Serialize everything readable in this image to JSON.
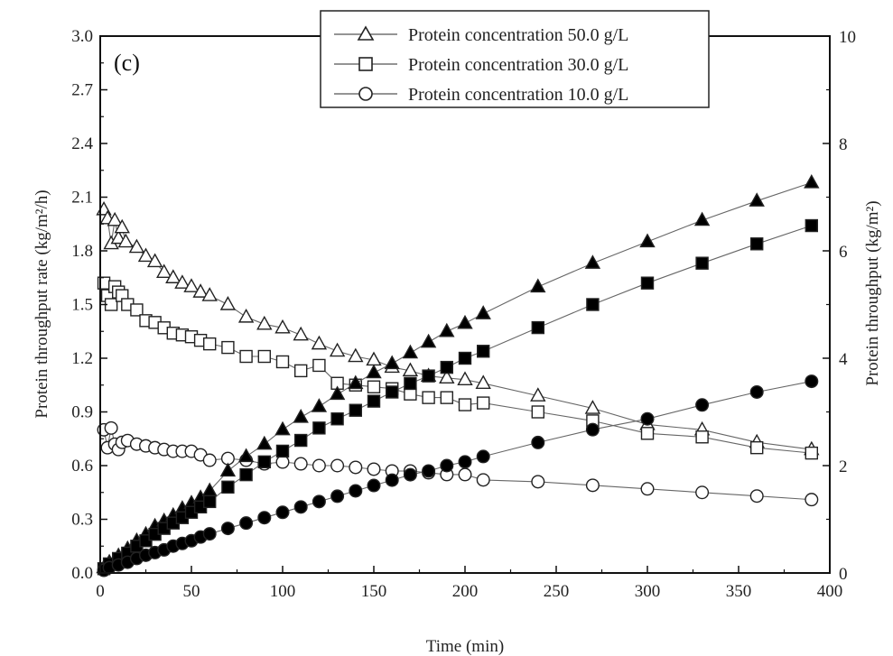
{
  "chart_data": {
    "type": "scatter",
    "panel_label": "(c)",
    "xlabel": "Time (min)",
    "ylabel_left": "Protein throughput rate (kg/m²/h)",
    "ylabel_right": "Protein throughput (kg/m²)",
    "xlim": [
      0,
      400
    ],
    "ylim_left": [
      0,
      3.0
    ],
    "ylim_right": [
      0,
      10
    ],
    "x_ticks": [
      "0",
      "50",
      "100",
      "150",
      "200",
      "250",
      "300",
      "350",
      "400"
    ],
    "y_left_ticks": [
      "0.0",
      "0.3",
      "0.6",
      "0.9",
      "1.2",
      "1.5",
      "1.8",
      "2.1",
      "2.4",
      "2.7",
      "3.0"
    ],
    "y_right_ticks": [
      "0",
      "2",
      "4",
      "6",
      "8",
      "10"
    ],
    "legend_position": "top-right",
    "legend": [
      {
        "marker": "triangle",
        "label": "Protein concentration 50.0 g/L"
      },
      {
        "marker": "square",
        "label": "Protein concentration 30.0 g/L"
      },
      {
        "marker": "circle",
        "label": "Protein concentration 10.0 g/L"
      }
    ],
    "series": [
      {
        "name": "Protein concentration 50.0 g/L",
        "marker": "triangle",
        "fill": "open",
        "axis": "left",
        "points": [
          [
            2,
            2.03
          ],
          [
            4,
            1.98
          ],
          [
            6,
            1.84
          ],
          [
            8,
            1.97
          ],
          [
            10,
            1.87
          ],
          [
            12,
            1.93
          ],
          [
            14,
            1.85
          ],
          [
            20,
            1.82
          ],
          [
            25,
            1.77
          ],
          [
            30,
            1.74
          ],
          [
            35,
            1.68
          ],
          [
            40,
            1.65
          ],
          [
            45,
            1.62
          ],
          [
            50,
            1.6
          ],
          [
            55,
            1.57
          ],
          [
            60,
            1.55
          ],
          [
            70,
            1.5
          ],
          [
            80,
            1.43
          ],
          [
            90,
            1.39
          ],
          [
            100,
            1.37
          ],
          [
            110,
            1.33
          ],
          [
            120,
            1.28
          ],
          [
            130,
            1.24
          ],
          [
            140,
            1.21
          ],
          [
            150,
            1.19
          ],
          [
            160,
            1.15
          ],
          [
            170,
            1.13
          ],
          [
            180,
            1.1
          ],
          [
            190,
            1.09
          ],
          [
            200,
            1.08
          ],
          [
            210,
            1.06
          ],
          [
            240,
            0.99
          ],
          [
            270,
            0.92
          ],
          [
            300,
            0.83
          ],
          [
            330,
            0.8
          ],
          [
            360,
            0.73
          ],
          [
            390,
            0.69
          ]
        ]
      },
      {
        "name": "Protein concentration 30.0 g/L",
        "marker": "square",
        "fill": "open",
        "axis": "left",
        "points": [
          [
            2,
            1.62
          ],
          [
            4,
            1.55
          ],
          [
            6,
            1.5
          ],
          [
            8,
            1.6
          ],
          [
            10,
            1.57
          ],
          [
            12,
            1.55
          ],
          [
            15,
            1.5
          ],
          [
            20,
            1.47
          ],
          [
            25,
            1.41
          ],
          [
            30,
            1.4
          ],
          [
            35,
            1.37
          ],
          [
            40,
            1.34
          ],
          [
            45,
            1.33
          ],
          [
            50,
            1.32
          ],
          [
            55,
            1.3
          ],
          [
            60,
            1.28
          ],
          [
            70,
            1.26
          ],
          [
            80,
            1.21
          ],
          [
            90,
            1.21
          ],
          [
            100,
            1.18
          ],
          [
            110,
            1.13
          ],
          [
            120,
            1.16
          ],
          [
            130,
            1.06
          ],
          [
            140,
            1.05
          ],
          [
            150,
            1.04
          ],
          [
            160,
            1.03
          ],
          [
            170,
            1.0
          ],
          [
            180,
            0.98
          ],
          [
            190,
            0.98
          ],
          [
            200,
            0.94
          ],
          [
            210,
            0.95
          ],
          [
            240,
            0.9
          ],
          [
            270,
            0.85
          ],
          [
            300,
            0.78
          ],
          [
            330,
            0.76
          ],
          [
            360,
            0.7
          ],
          [
            390,
            0.67
          ]
        ]
      },
      {
        "name": "Protein concentration 10.0 g/L",
        "marker": "circle",
        "fill": "open",
        "axis": "left",
        "points": [
          [
            2,
            0.8
          ],
          [
            4,
            0.7
          ],
          [
            6,
            0.81
          ],
          [
            8,
            0.72
          ],
          [
            10,
            0.69
          ],
          [
            12,
            0.73
          ],
          [
            15,
            0.74
          ],
          [
            20,
            0.72
          ],
          [
            25,
            0.71
          ],
          [
            30,
            0.7
          ],
          [
            35,
            0.69
          ],
          [
            40,
            0.68
          ],
          [
            45,
            0.68
          ],
          [
            50,
            0.68
          ],
          [
            55,
            0.66
          ],
          [
            60,
            0.63
          ],
          [
            70,
            0.64
          ],
          [
            80,
            0.63
          ],
          [
            90,
            0.61
          ],
          [
            100,
            0.62
          ],
          [
            110,
            0.61
          ],
          [
            120,
            0.6
          ],
          [
            130,
            0.6
          ],
          [
            140,
            0.59
          ],
          [
            150,
            0.58
          ],
          [
            160,
            0.57
          ],
          [
            170,
            0.57
          ],
          [
            180,
            0.56
          ],
          [
            190,
            0.55
          ],
          [
            200,
            0.55
          ],
          [
            210,
            0.52
          ],
          [
            240,
            0.51
          ],
          [
            270,
            0.49
          ],
          [
            300,
            0.47
          ],
          [
            330,
            0.45
          ],
          [
            360,
            0.43
          ],
          [
            390,
            0.41
          ]
        ]
      },
      {
        "name": "Protein concentration 50.0 g/L",
        "marker": "triangle",
        "fill": "solid",
        "axis": "right",
        "points": [
          [
            2,
            0.1
          ],
          [
            5,
            0.2
          ],
          [
            10,
            0.32
          ],
          [
            15,
            0.45
          ],
          [
            20,
            0.6
          ],
          [
            25,
            0.72
          ],
          [
            30,
            0.87
          ],
          [
            35,
            0.97
          ],
          [
            40,
            1.07
          ],
          [
            45,
            1.2
          ],
          [
            50,
            1.3
          ],
          [
            55,
            1.4
          ],
          [
            60,
            1.53
          ],
          [
            70,
            1.9
          ],
          [
            80,
            2.17
          ],
          [
            90,
            2.4
          ],
          [
            100,
            2.67
          ],
          [
            110,
            2.9
          ],
          [
            120,
            3.1
          ],
          [
            130,
            3.33
          ],
          [
            140,
            3.53
          ],
          [
            150,
            3.73
          ],
          [
            160,
            3.9
          ],
          [
            170,
            4.1
          ],
          [
            180,
            4.3
          ],
          [
            190,
            4.5
          ],
          [
            200,
            4.65
          ],
          [
            210,
            4.83
          ],
          [
            240,
            5.33
          ],
          [
            270,
            5.77
          ],
          [
            300,
            6.17
          ],
          [
            330,
            6.57
          ],
          [
            360,
            6.93
          ],
          [
            390,
            7.27
          ]
        ]
      },
      {
        "name": "Protein concentration 30.0 g/L",
        "marker": "square",
        "fill": "solid",
        "axis": "right",
        "points": [
          [
            2,
            0.08
          ],
          [
            5,
            0.17
          ],
          [
            10,
            0.27
          ],
          [
            15,
            0.37
          ],
          [
            20,
            0.5
          ],
          [
            25,
            0.6
          ],
          [
            30,
            0.72
          ],
          [
            35,
            0.83
          ],
          [
            40,
            0.93
          ],
          [
            45,
            1.03
          ],
          [
            50,
            1.13
          ],
          [
            55,
            1.23
          ],
          [
            60,
            1.33
          ],
          [
            70,
            1.6
          ],
          [
            80,
            1.83
          ],
          [
            90,
            2.07
          ],
          [
            100,
            2.27
          ],
          [
            110,
            2.47
          ],
          [
            120,
            2.7
          ],
          [
            130,
            2.87
          ],
          [
            140,
            3.03
          ],
          [
            150,
            3.2
          ],
          [
            160,
            3.37
          ],
          [
            170,
            3.53
          ],
          [
            180,
            3.67
          ],
          [
            190,
            3.83
          ],
          [
            200,
            4.0
          ],
          [
            210,
            4.13
          ],
          [
            240,
            4.57
          ],
          [
            270,
            5.0
          ],
          [
            300,
            5.4
          ],
          [
            330,
            5.77
          ],
          [
            360,
            6.13
          ],
          [
            390,
            6.47
          ]
        ]
      },
      {
        "name": "Protein concentration 10.0 g/L",
        "marker": "circle",
        "fill": "solid",
        "axis": "right",
        "points": [
          [
            2,
            0.05
          ],
          [
            5,
            0.1
          ],
          [
            10,
            0.15
          ],
          [
            15,
            0.2
          ],
          [
            20,
            0.27
          ],
          [
            25,
            0.33
          ],
          [
            30,
            0.38
          ],
          [
            35,
            0.43
          ],
          [
            40,
            0.5
          ],
          [
            45,
            0.55
          ],
          [
            50,
            0.6
          ],
          [
            55,
            0.67
          ],
          [
            60,
            0.73
          ],
          [
            70,
            0.83
          ],
          [
            80,
            0.93
          ],
          [
            90,
            1.03
          ],
          [
            100,
            1.13
          ],
          [
            110,
            1.23
          ],
          [
            120,
            1.33
          ],
          [
            130,
            1.43
          ],
          [
            140,
            1.53
          ],
          [
            150,
            1.63
          ],
          [
            160,
            1.73
          ],
          [
            170,
            1.83
          ],
          [
            180,
            1.9
          ],
          [
            190,
            2.0
          ],
          [
            200,
            2.07
          ],
          [
            210,
            2.17
          ],
          [
            240,
            2.43
          ],
          [
            270,
            2.67
          ],
          [
            300,
            2.87
          ],
          [
            330,
            3.13
          ],
          [
            360,
            3.37
          ],
          [
            390,
            3.57
          ]
        ]
      }
    ]
  }
}
